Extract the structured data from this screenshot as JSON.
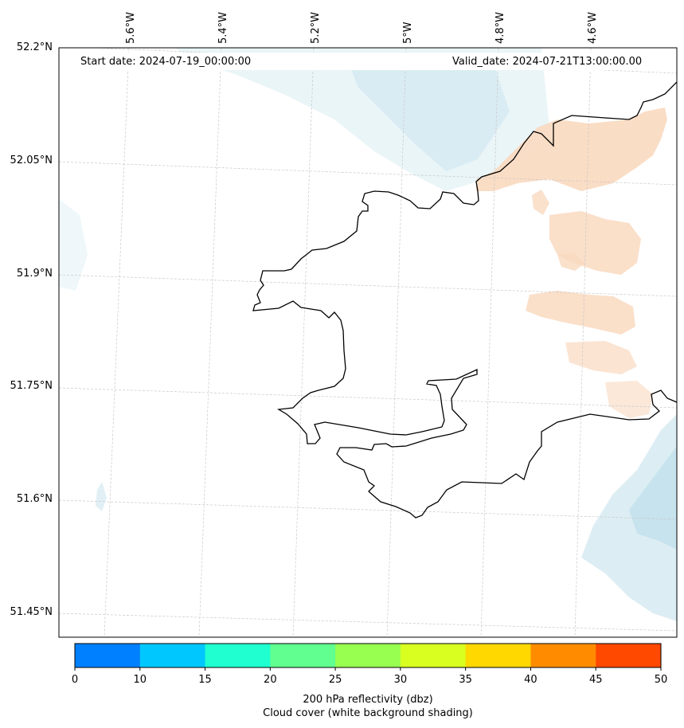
{
  "header": {
    "start_date": "Start date: 2024-07-19_00:00:00",
    "valid_date": "Valid_date: 2024-07-21T13:00:00.00"
  },
  "map": {
    "lat_labels": [
      "52.2°N",
      "52.05°N",
      "51.9°N",
      "51.75°N",
      "51.6°N",
      "51.45°N"
    ],
    "lon_labels": [
      "5.6°W",
      "5.4°W",
      "5.2°W",
      "5°W",
      "4.8°W",
      "4.6°W"
    ],
    "colors": {
      "coastline": "#000000",
      "gridline": "#c8c8c8",
      "reflectivity_light": "#f9d9bf",
      "cloud_light": "#d8ecf3"
    }
  },
  "colorbar": {
    "ticks": [
      "0",
      "10",
      "15",
      "20",
      "25",
      "30",
      "35",
      "40",
      "45",
      "50"
    ],
    "colors": [
      "#0080ff",
      "#00c8ff",
      "#20ffd0",
      "#60ff90",
      "#98ff50",
      "#d8ff20",
      "#ffd800",
      "#ff8c00",
      "#ff4800"
    ],
    "title_line1": "200 hPa reflectivity (dbz)",
    "title_line2": "Cloud cover (white background shading)"
  }
}
